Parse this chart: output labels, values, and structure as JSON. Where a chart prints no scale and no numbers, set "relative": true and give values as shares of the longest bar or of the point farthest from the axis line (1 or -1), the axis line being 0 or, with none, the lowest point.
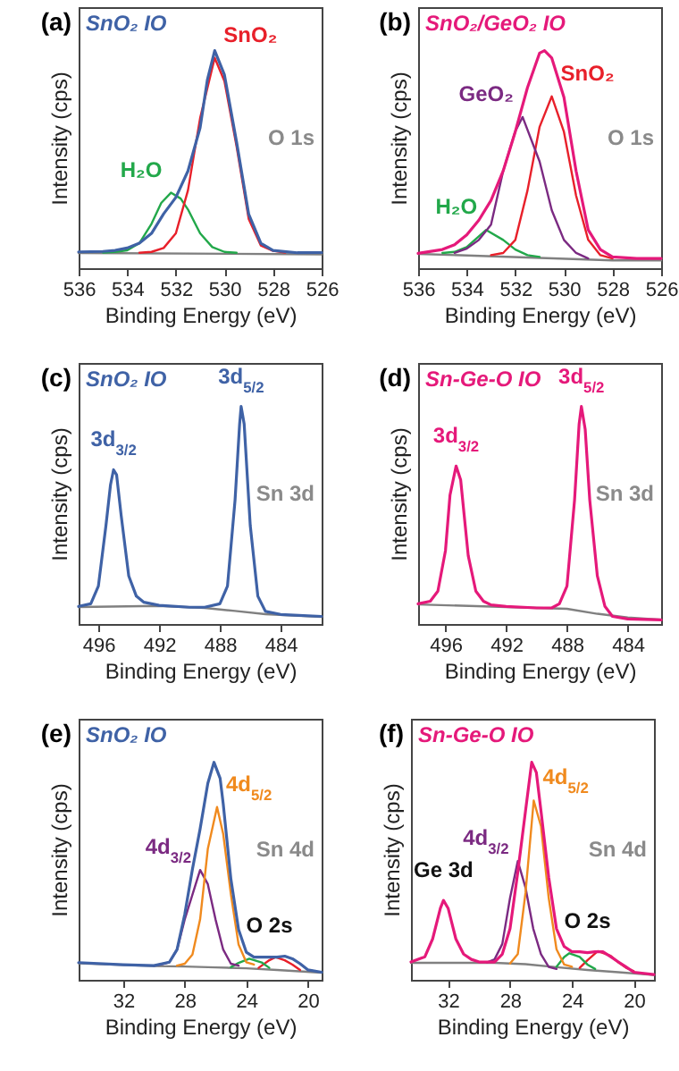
{
  "chart_data": [
    {
      "type": "line",
      "title": "(a)",
      "xlabel": "Binding Energy (eV)",
      "ylabel": "Intensity (cps)",
      "relative": true,
      "tick_labels": "x",
      "xlim": [
        536,
        526
      ],
      "xticks": [
        536,
        534,
        532,
        530,
        528,
        526
      ],
      "annotations": [
        "O 1s"
      ],
      "series": [
        {
          "name": "SnO₂ IO",
          "color": "#3f62a6",
          "x": [
            536,
            535,
            534.5,
            534,
            533.5,
            533,
            532.5,
            532,
            531.5,
            531,
            530.7,
            530.4,
            530,
            529.5,
            529,
            528.5,
            528,
            527,
            526
          ],
          "values": [
            0.075,
            0.077,
            0.082,
            0.093,
            0.115,
            0.16,
            0.25,
            0.325,
            0.447,
            0.646,
            0.867,
            1,
            0.889,
            0.58,
            0.248,
            0.115,
            0.082,
            0.071,
            0.072
          ]
        },
        {
          "name": "SnO₂",
          "color": "#e8202a",
          "x": [
            533.5,
            533,
            532.5,
            532,
            531.5,
            531,
            530.4,
            530,
            529.5,
            529,
            528.5,
            528,
            527.5
          ],
          "values": [
            0.071,
            0.075,
            0.093,
            0.16,
            0.358,
            0.69,
            0.967,
            0.86,
            0.56,
            0.226,
            0.104,
            0.08,
            0.072
          ]
        },
        {
          "name": "H₂O",
          "color": "#22a84a",
          "x": [
            535,
            534.5,
            534,
            533.5,
            533,
            532.6,
            532.2,
            531.8,
            531.5,
            531,
            530.5,
            530,
            529.5
          ],
          "values": [
            0.072,
            0.075,
            0.082,
            0.115,
            0.204,
            0.3,
            0.347,
            0.32,
            0.27,
            0.16,
            0.097,
            0.075,
            0.071
          ]
        },
        {
          "color": "#808080",
          "x": [
            536,
            526
          ],
          "values": [
            0.07,
            0.064
          ]
        }
      ]
    },
    {
      "type": "line",
      "title": "(b)",
      "xlabel": "Binding Energy (eV)",
      "ylabel": "Intensity (cps)",
      "relative": true,
      "tick_labels": "x",
      "xlim": [
        536,
        526
      ],
      "xticks": [
        536,
        534,
        532,
        530,
        528,
        526
      ],
      "annotations": [
        "O 1s"
      ],
      "series": [
        {
          "name": "SnO₂/GeO₂ IO",
          "color": "#e5197a",
          "x": [
            536,
            535,
            534.5,
            534,
            533.5,
            533,
            532.5,
            532,
            531.5,
            531,
            530.8,
            530.5,
            530,
            529.5,
            529,
            528.5,
            528,
            527,
            526
          ],
          "values": [
            0.068,
            0.086,
            0.108,
            0.153,
            0.221,
            0.312,
            0.447,
            0.628,
            0.83,
            0.989,
            1,
            0.966,
            0.786,
            0.447,
            0.176,
            0.086,
            0.052,
            0.045,
            0.045
          ]
        },
        {
          "name": "GeO₂",
          "color": "#7b2a82",
          "x": [
            534.5,
            534,
            533.5,
            533,
            532.5,
            532,
            531.7,
            531,
            530.5,
            530,
            529.5,
            529
          ],
          "values": [
            0.07,
            0.09,
            0.13,
            0.2,
            0.447,
            0.63,
            0.695,
            0.49,
            0.266,
            0.13,
            0.07,
            0.045
          ]
        },
        {
          "name": "SnO₂",
          "color": "#e8202a",
          "x": [
            533,
            532.5,
            532,
            531.5,
            531,
            530.5,
            530,
            529.5,
            529,
            528.5,
            528
          ],
          "values": [
            0.06,
            0.07,
            0.13,
            0.357,
            0.65,
            0.79,
            0.627,
            0.334,
            0.13,
            0.06,
            0.045
          ]
        },
        {
          "name": "H₂O",
          "color": "#22a84a",
          "x": [
            535,
            534.5,
            534,
            533.2,
            532.5,
            532,
            531.5,
            531
          ],
          "values": [
            0.07,
            0.075,
            0.097,
            0.176,
            0.13,
            0.086,
            0.06,
            0.052
          ]
        },
        {
          "color": "#808080",
          "x": [
            536,
            528,
            526
          ],
          "values": [
            0.066,
            0.036,
            0.036
          ]
        }
      ]
    },
    {
      "type": "line",
      "title": "(c)",
      "xlabel": "Binding Energy (eV)",
      "ylabel": "Intensity (cps)",
      "relative": true,
      "tick_labels": "x",
      "xlim": [
        497.3,
        481.3
      ],
      "xticks": [
        496,
        492,
        488,
        484
      ],
      "annotations": [
        "Sn 3d",
        {
          "text": "3d$_{3/2}$",
          "x": 495,
          "y": 0.709
        },
        {
          "text": "3d$_{5/2}$",
          "x": 486.6,
          "y": 1
        }
      ],
      "series": [
        {
          "name": "SnO₂ IO",
          "color": "#3f62a6",
          "x": [
            497.3,
            496.5,
            496,
            495.5,
            495.2,
            495,
            494.8,
            494.5,
            494,
            493.5,
            493,
            492,
            490,
            489,
            488,
            487.5,
            487,
            486.7,
            486.6,
            486.4,
            486,
            485.5,
            485,
            484,
            481.3
          ],
          "values": [
            0.081,
            0.093,
            0.174,
            0.453,
            0.64,
            0.709,
            0.686,
            0.5,
            0.221,
            0.128,
            0.1,
            0.086,
            0.077,
            0.077,
            0.093,
            0.174,
            0.57,
            0.919,
            1,
            0.919,
            0.453,
            0.128,
            0.058,
            0.044,
            0.035
          ]
        },
        {
          "color": "#808080",
          "x": [
            497.3,
            492,
            489,
            487,
            485,
            481.3
          ],
          "values": [
            0.078,
            0.083,
            0.074,
            0.06,
            0.045,
            0.033
          ]
        }
      ]
    },
    {
      "type": "line",
      "title": "(d)",
      "xlabel": "Binding Energy (eV)",
      "ylabel": "Intensity (cps)",
      "relative": true,
      "tick_labels": "x",
      "xlim": [
        497.8,
        481.8
      ],
      "xticks": [
        496,
        492,
        488,
        484
      ],
      "annotations": [
        "Sn 3d",
        {
          "text": "3d$_{3/2}$",
          "x": 495.3,
          "y": 0.726
        },
        {
          "text": "3d$_{5/2}$",
          "x": 487.05,
          "y": 1
        }
      ],
      "series": [
        {
          "name": "Sn-Ge-O IO",
          "color": "#e5197a",
          "x": [
            497.8,
            497,
            496.5,
            496,
            495.7,
            495.3,
            495,
            494.7,
            494.5,
            494,
            493.5,
            493,
            492,
            490,
            489,
            488.5,
            488,
            487.5,
            487.2,
            487.05,
            486.8,
            486.5,
            486,
            485.5,
            485,
            484,
            481.8
          ],
          "values": [
            0.093,
            0.105,
            0.151,
            0.337,
            0.593,
            0.726,
            0.663,
            0.453,
            0.314,
            0.151,
            0.105,
            0.088,
            0.081,
            0.074,
            0.074,
            0.093,
            0.174,
            0.57,
            0.919,
            1,
            0.895,
            0.57,
            0.221,
            0.081,
            0.035,
            0.023,
            0.019
          ]
        },
        {
          "color": "#808080",
          "x": [
            497.8,
            492,
            489,
            488,
            486,
            484,
            481.8
          ],
          "values": [
            0.09,
            0.078,
            0.072,
            0.07,
            0.047,
            0.03,
            0.02
          ]
        }
      ]
    },
    {
      "type": "line",
      "title": "(e)",
      "xlabel": "Binding Energy (eV)",
      "ylabel": "Intensity (cps)",
      "relative": true,
      "tick_labels": "x",
      "xlim": [
        34.9,
        19.1
      ],
      "xticks": [
        32,
        28,
        24,
        20
      ],
      "annotations": [
        "Sn 4d",
        {
          "text": "O 2s",
          "x": 22.5,
          "y": 0.11
        }
      ],
      "series": [
        {
          "name": "SnO₂ IO",
          "color": "#3f62a6",
          "x": [
            34.9,
            32,
            30,
            29,
            28.5,
            28,
            27.5,
            27,
            26.5,
            26.1,
            25.7,
            25.5,
            25,
            24.5,
            24,
            23.5,
            23,
            22,
            21.5,
            21,
            20.5,
            20,
            19.1
          ],
          "values": [
            0.079,
            0.069,
            0.065,
            0.081,
            0.139,
            0.301,
            0.509,
            0.694,
            0.903,
            1,
            0.926,
            0.81,
            0.463,
            0.231,
            0.127,
            0.104,
            0.104,
            0.104,
            0.109,
            0.097,
            0.074,
            0.046,
            0.035
          ]
        },
        {
          "name": "4d$_{5/2}$",
          "color": "#f08a1e",
          "x": [
            28.5,
            28,
            27.5,
            27,
            26.5,
            25.9,
            25.5,
            25,
            24.5,
            24,
            23.5
          ],
          "values": [
            0.065,
            0.074,
            0.116,
            0.278,
            0.602,
            0.794,
            0.671,
            0.394,
            0.162,
            0.081,
            0.07
          ]
        },
        {
          "name": "4d$_{3/2}$",
          "color": "#7b2a82",
          "x": [
            30,
            29.5,
            29,
            28.5,
            28,
            27,
            26.5,
            26,
            25.5,
            25,
            24.5
          ],
          "values": [
            0.065,
            0.072,
            0.081,
            0.139,
            0.278,
            0.505,
            0.44,
            0.278,
            0.139,
            0.074,
            0.065
          ]
        },
        {
          "color": "#22a84a",
          "x": [
            25,
            24.5,
            23.8,
            23,
            22.5
          ],
          "values": [
            0.058,
            0.078,
            0.097,
            0.08,
            0.055
          ]
        },
        {
          "color": "#e8202a",
          "x": [
            23.2,
            22.5,
            22.1,
            21.5,
            21,
            20.5
          ],
          "values": [
            0.055,
            0.09,
            0.104,
            0.09,
            0.07,
            0.045
          ]
        },
        {
          "color": "#808080",
          "x": [
            34.9,
            30,
            28,
            26,
            24,
            22,
            19.1
          ],
          "values": [
            0.076,
            0.063,
            0.061,
            0.057,
            0.053,
            0.045,
            0.033
          ]
        }
      ]
    },
    {
      "type": "line",
      "title": "(f)",
      "xlabel": "Binding Energy (eV)",
      "ylabel": "Intensity (cps)",
      "relative": true,
      "tick_labels": "x",
      "xlim": [
        34.4,
        18.7
      ],
      "xticks": [
        32,
        28,
        24,
        20
      ],
      "annotations": [
        "Sn 4d",
        {
          "text": "Ge 3d",
          "x": 32.3,
          "y": 0.365
        },
        {
          "text": "O 2s",
          "x": 23,
          "y": 0.13
        }
      ],
      "series": [
        {
          "name": "Sn-Ge-O IO",
          "color": "#e5197a",
          "x": [
            34.4,
            33.5,
            33,
            32.5,
            32.3,
            32,
            31.5,
            31,
            30.5,
            30,
            29,
            28.5,
            28,
            27.5,
            27,
            26.6,
            26.3,
            26,
            25.5,
            25,
            24.5,
            24,
            23.5,
            23,
            22.5,
            22,
            21.5,
            21,
            20.5,
            20,
            18.7
          ],
          "values": [
            0.082,
            0.106,
            0.188,
            0.329,
            0.365,
            0.329,
            0.188,
            0.118,
            0.094,
            0.082,
            0.082,
            0.118,
            0.235,
            0.494,
            0.776,
            1,
            0.953,
            0.776,
            0.471,
            0.235,
            0.153,
            0.129,
            0.129,
            0.125,
            0.129,
            0.129,
            0.106,
            0.082,
            0.059,
            0.035,
            0.024
          ]
        },
        {
          "name": "4d$_{5/2}$",
          "color": "#f08a1e",
          "x": [
            28,
            27.5,
            27,
            26.47,
            26,
            25.5,
            25,
            24.5,
            24
          ],
          "values": [
            0.075,
            0.118,
            0.4,
            0.824,
            0.706,
            0.376,
            0.141,
            0.07,
            0.06
          ]
        },
        {
          "name": "4d$_{3/2}$",
          "color": "#7b2a82",
          "x": [
            29.5,
            29,
            28.5,
            28,
            27.5,
            27,
            26.5,
            26,
            25.5,
            25
          ],
          "values": [
            0.08,
            0.094,
            0.165,
            0.376,
            0.546,
            0.424,
            0.235,
            0.118,
            0.059,
            0.05
          ]
        },
        {
          "color": "#22a84a",
          "x": [
            25,
            24.5,
            24.17,
            23.5,
            23,
            22.5
          ],
          "values": [
            0.06,
            0.105,
            0.122,
            0.105,
            0.07,
            0.05
          ]
        },
        {
          "color": "#e8202a",
          "x": [
            23.5,
            23,
            22.33,
            21.5,
            21,
            20.5,
            20
          ],
          "values": [
            0.055,
            0.09,
            0.132,
            0.11,
            0.08,
            0.055,
            0.04
          ]
        },
        {
          "color": "#808080",
          "x": [
            34.4,
            29,
            27,
            25,
            23,
            21,
            18.7
          ],
          "values": [
            0.078,
            0.078,
            0.072,
            0.058,
            0.045,
            0.035,
            0.022
          ]
        }
      ]
    }
  ]
}
